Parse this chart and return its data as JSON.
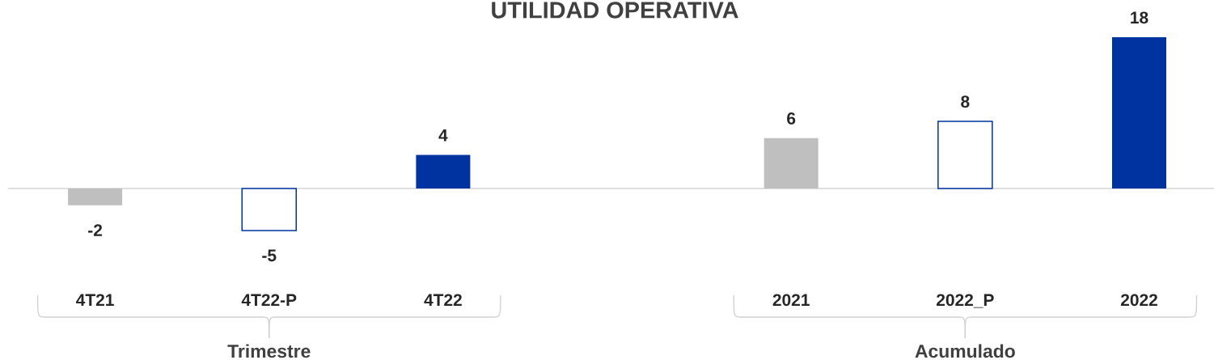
{
  "chart_data": {
    "type": "bar",
    "title": "UTILIDAD OPERATIVA",
    "categories": [
      "4T21",
      "4T22-P",
      "4T22",
      null,
      "2021",
      "2022_P",
      "2022"
    ],
    "values": [
      -2,
      -5,
      4,
      null,
      6,
      8,
      18
    ],
    "colors": [
      "#bfbfbf",
      "#ffffff",
      "#0033a0",
      null,
      "#bfbfbf",
      "#ffffff",
      "#0033a0"
    ],
    "data_labels": true,
    "annotations": [
      "Trimestre",
      "Acumulado"
    ]
  }
}
